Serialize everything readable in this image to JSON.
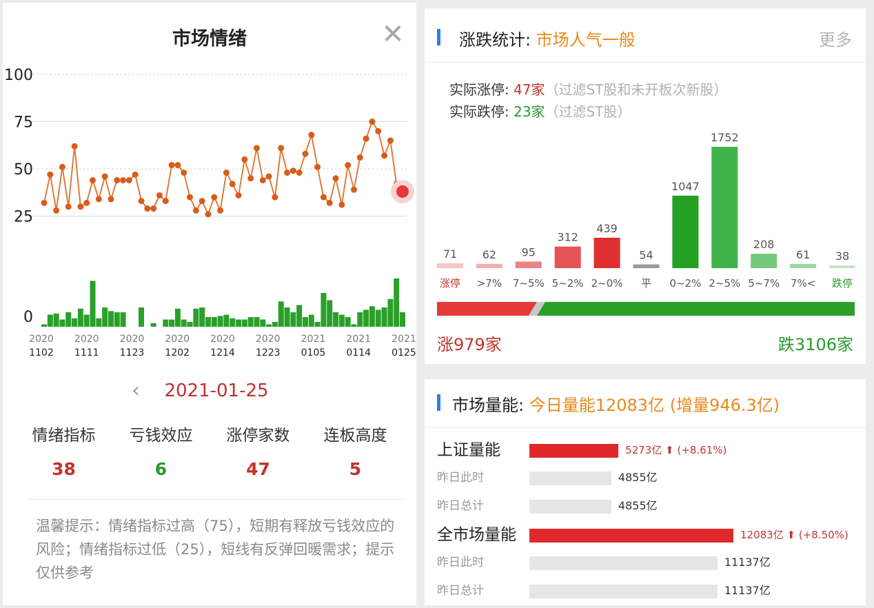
{
  "left_panel": {
    "title": "市场情绪",
    "close_symbol": "✕",
    "back_symbol": "‹",
    "date": "2021-01-25",
    "stats": [
      {
        "label": "情绪指标",
        "value": "38",
        "color": "#c0352d"
      },
      {
        "label": "亏钱效应",
        "value": "6",
        "color": "#2a9a2a"
      },
      {
        "label": "涨停家数",
        "value": "47",
        "color": "#c0352d"
      },
      {
        "label": "连板高度",
        "value": "5",
        "color": "#c0352d"
      }
    ],
    "tip": "温馨提示：情绪指标过高（75），短期有释放亏钱效应的风险；情绪指标过低（25），短线有反弹回暖需求；提示仅供参考"
  },
  "right_panel": {
    "stats_section": {
      "title_label": "涨跌统计: ",
      "title_value": "市场人气一般",
      "more": "更多",
      "limit_up_label": "实际涨停: ",
      "limit_up_value": "47家",
      "limit_up_note": "（过滤ST股和未开板次新股）",
      "limit_down_label": "实际跌停: ",
      "limit_down_value": "23家",
      "limit_down_note": "（过滤ST股）",
      "up_total": "涨979家",
      "down_total": "跌3106家",
      "up_fraction": 0.24
    },
    "volume_section": {
      "title_label": "市场量能: ",
      "title_value": "今日量能12083亿 (增量946.3亿)",
      "rows": [
        {
          "label": "上证量能",
          "value": "5273亿",
          "change": "(+8.61%)",
          "arrow": "⬆",
          "kind": "main",
          "amount": 5273
        },
        {
          "label": "昨日此时",
          "value": "4855亿",
          "kind": "sub",
          "amount": 4855
        },
        {
          "label": "昨日总计",
          "value": "4855亿",
          "kind": "sub",
          "amount": 4855
        },
        {
          "label": "全市场量能",
          "value": "12083亿",
          "change": "(+8.50%)",
          "arrow": "⬆",
          "kind": "main",
          "amount": 12083
        },
        {
          "label": "昨日此时",
          "value": "11137亿",
          "kind": "sub",
          "amount": 11137
        },
        {
          "label": "昨日总计",
          "value": "11137亿",
          "kind": "sub",
          "amount": 11137
        }
      ]
    }
  },
  "chart_data": [
    {
      "type": "line",
      "y_ticks": [
        "100",
        "75",
        "50",
        "25",
        "0"
      ],
      "ylim": [
        0,
        100
      ],
      "x_ticks": [
        {
          "year": "2020",
          "day": "1102"
        },
        {
          "year": "2020",
          "day": "1111"
        },
        {
          "year": "2020",
          "day": "1123"
        },
        {
          "year": "2020",
          "day": "1202"
        },
        {
          "year": "2020",
          "day": "1214"
        },
        {
          "year": "2020",
          "day": "1223"
        },
        {
          "year": "2021",
          "day": "0105"
        },
        {
          "year": "2021",
          "day": "0114"
        },
        {
          "year": "2021",
          "day": "0125"
        }
      ],
      "series": [
        {
          "values": [
            32,
            47,
            28,
            51,
            30,
            62,
            30,
            32,
            44,
            34,
            46,
            34,
            44,
            44,
            44,
            47,
            33,
            29,
            29,
            36,
            33,
            52,
            52,
            48,
            35,
            28,
            33,
            26,
            35,
            28,
            48,
            42,
            36,
            55,
            45,
            61,
            44,
            46,
            35,
            61,
            48,
            49,
            48,
            58,
            68,
            51,
            35,
            32,
            45,
            31,
            52,
            39,
            56,
            66,
            75,
            70,
            57,
            65,
            42,
            38
          ],
          "line_color": "#e07a3a",
          "point_color": "#d85c1a",
          "last_point_color": "#e53935"
        }
      ],
      "volume_values": [
        2,
        10,
        11,
        6,
        12,
        7,
        15,
        10,
        38,
        7,
        16,
        13,
        12,
        12,
        0,
        0,
        16,
        0,
        3,
        0,
        6,
        6,
        15,
        6,
        4,
        15,
        16,
        8,
        8,
        9,
        10,
        7,
        6,
        6,
        8,
        8,
        6,
        2,
        4,
        21,
        16,
        12,
        18,
        8,
        10,
        4,
        28,
        22,
        12,
        10,
        8,
        2,
        12,
        14,
        17,
        14,
        16,
        23,
        40,
        12
      ],
      "volume_color": "#2aa02a"
    },
    {
      "type": "bar",
      "categories": [
        "涨停",
        ">7%",
        "7~5%",
        "5~2%",
        "2~0%",
        "平",
        "0~2%",
        "2~5%",
        "5~7%",
        "7%<",
        "跌停"
      ],
      "values": [
        71,
        62,
        95,
        312,
        439,
        54,
        1047,
        1752,
        208,
        61,
        38
      ],
      "colors": [
        "#f3c7c7",
        "#efb0b0",
        "#e98484",
        "#e55454",
        "#df2f2f",
        "#9a9a9a",
        "#23a023",
        "#40b44a",
        "#72c979",
        "#9fd89f",
        "#c6e8c6"
      ],
      "label_colors": [
        "#c0352d",
        "#555555",
        "#555555",
        "#555555",
        "#555555",
        "#555555",
        "#555555",
        "#555555",
        "#555555",
        "#555555",
        "#2a9a2a"
      ]
    }
  ]
}
